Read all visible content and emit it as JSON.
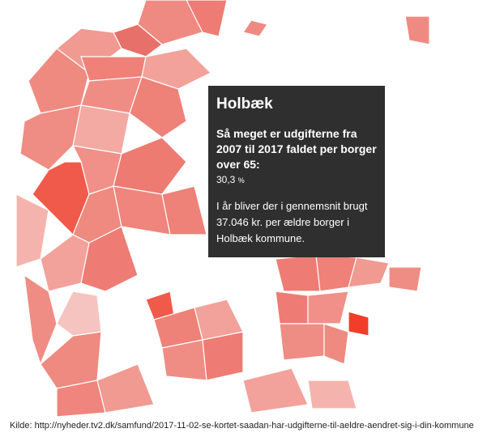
{
  "tooltip": {
    "title": "Holbæk",
    "heading": "Så meget er udgifterne fra 2007 til 2017 faldet per borger over 65:",
    "value": "30,3",
    "unit": "%",
    "body": "I år bliver der i gennemsnit brugt 37.046 kr. per ældre borger i Holbæk kommune."
  },
  "source": "Kilde: http://nyheder.tv2.dk/samfund/2017-11-02-se-kortet-saadan-har-udgifterne-til-aeldre-aendret-sig-i-din-kommune"
}
